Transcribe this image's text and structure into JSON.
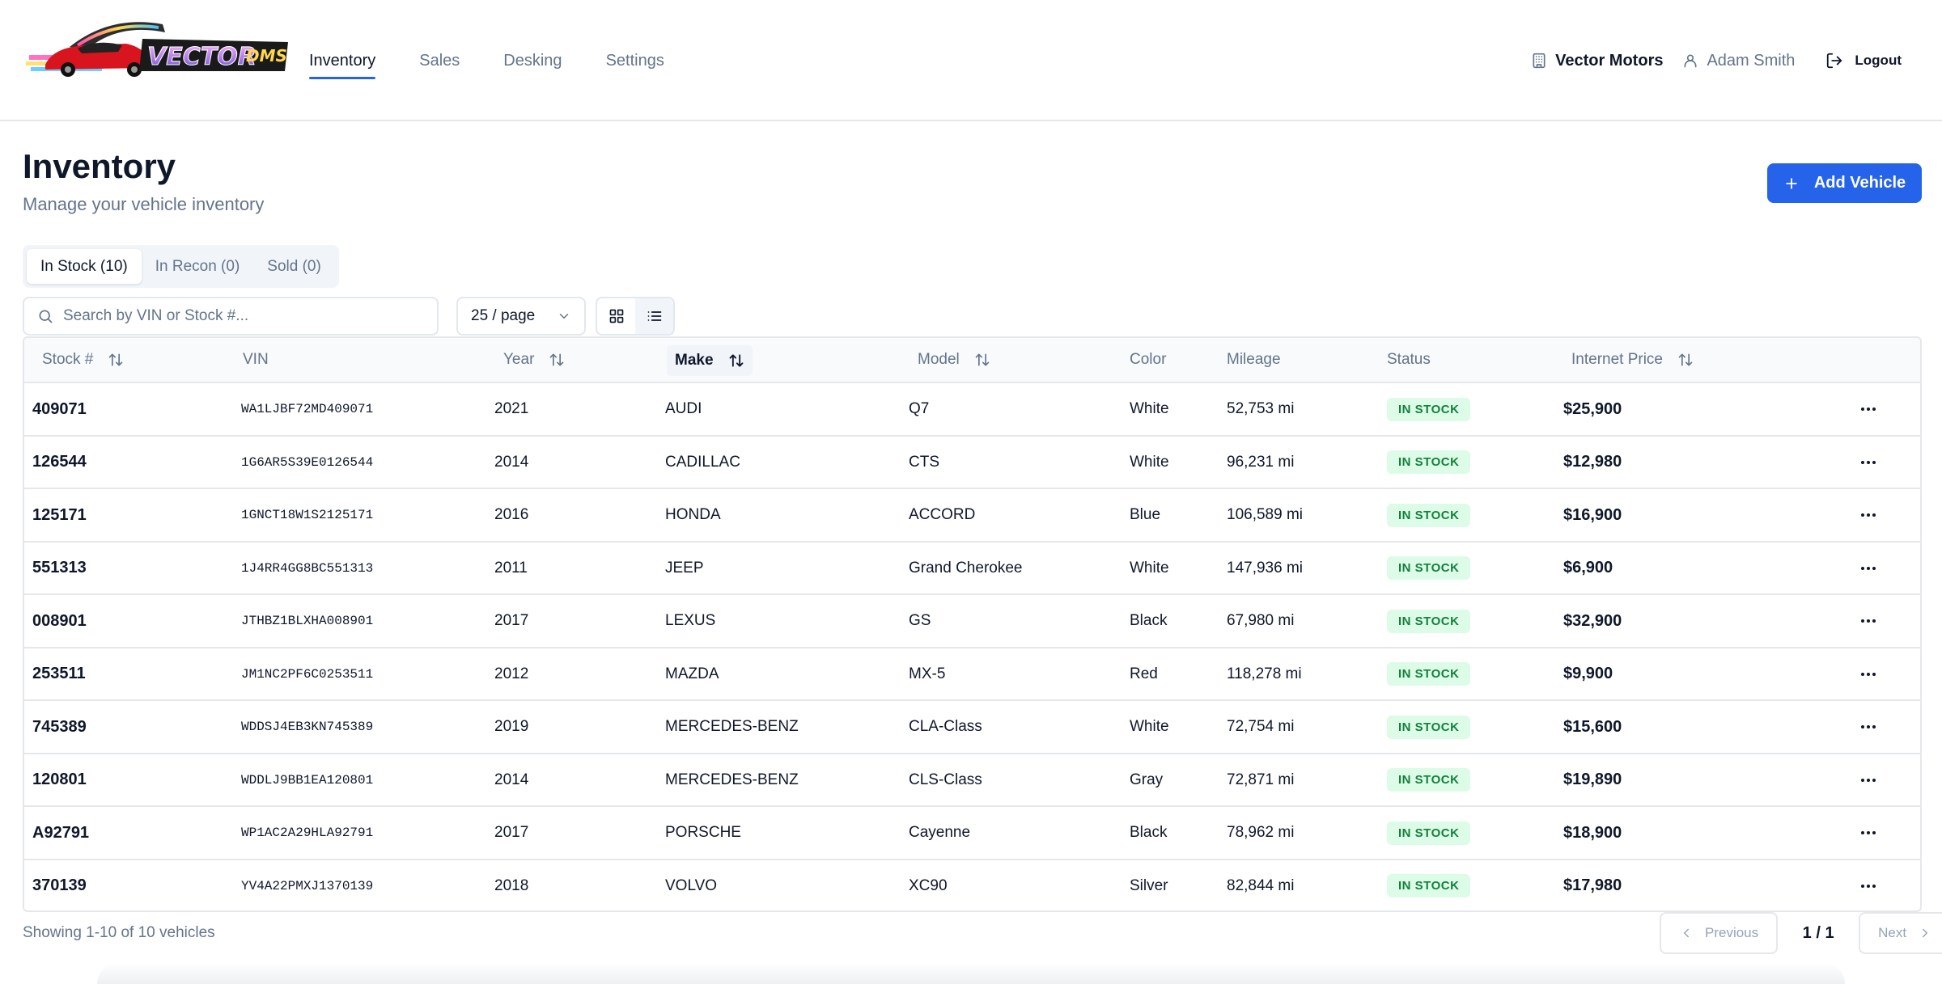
{
  "header": {
    "logo_text": "VECTOR DMS",
    "nav": [
      {
        "label": "Inventory",
        "active": true
      },
      {
        "label": "Sales",
        "active": false
      },
      {
        "label": "Desking",
        "active": false
      },
      {
        "label": "Settings",
        "active": false
      }
    ],
    "dealer_name": "Vector Motors",
    "user_name": "Adam Smith",
    "logout_label": "Logout"
  },
  "page": {
    "title": "Inventory",
    "subtitle": "Manage your vehicle inventory",
    "add_button": "Add Vehicle"
  },
  "tabs": [
    {
      "label": "In Stock (10)",
      "active": true
    },
    {
      "label": "In Recon (0)",
      "active": false
    },
    {
      "label": "Sold (0)",
      "active": false
    }
  ],
  "toolbar": {
    "search_placeholder": "Search by VIN or Stock #...",
    "page_size": "25 / page",
    "view_mode": "list"
  },
  "table": {
    "columns": [
      {
        "label": "Stock #",
        "sortable": true
      },
      {
        "label": "VIN",
        "sortable": false
      },
      {
        "label": "Year",
        "sortable": true
      },
      {
        "label": "Make",
        "sortable": true,
        "sorted": true
      },
      {
        "label": "Model",
        "sortable": true
      },
      {
        "label": "Color",
        "sortable": false
      },
      {
        "label": "Mileage",
        "sortable": false
      },
      {
        "label": "Status",
        "sortable": false
      },
      {
        "label": "Internet Price",
        "sortable": true
      }
    ],
    "rows": [
      {
        "stock": "409071",
        "vin": "WA1LJBF72MD409071",
        "year": "2021",
        "make": "AUDI",
        "model": "Q7",
        "color": "White",
        "mileage": "52,753 mi",
        "status": "IN STOCK",
        "price": "$25,900"
      },
      {
        "stock": "126544",
        "vin": "1G6AR5S39E0126544",
        "year": "2014",
        "make": "CADILLAC",
        "model": "CTS",
        "color": "White",
        "mileage": "96,231 mi",
        "status": "IN STOCK",
        "price": "$12,980"
      },
      {
        "stock": "125171",
        "vin": "1GNCT18W1S2125171",
        "year": "2016",
        "make": "HONDA",
        "model": "ACCORD",
        "color": "Blue",
        "mileage": "106,589 mi",
        "status": "IN STOCK",
        "price": "$16,900"
      },
      {
        "stock": "551313",
        "vin": "1J4RR4GG8BC551313",
        "year": "2011",
        "make": "JEEP",
        "model": "Grand Cherokee",
        "color": "White",
        "mileage": "147,936 mi",
        "status": "IN STOCK",
        "price": "$6,900"
      },
      {
        "stock": "008901",
        "vin": "JTHBZ1BLXHA008901",
        "year": "2017",
        "make": "LEXUS",
        "model": "GS",
        "color": "Black",
        "mileage": "67,980 mi",
        "status": "IN STOCK",
        "price": "$32,900"
      },
      {
        "stock": "253511",
        "vin": "JM1NC2PF6C0253511",
        "year": "2012",
        "make": "MAZDA",
        "model": "MX-5",
        "color": "Red",
        "mileage": "118,278 mi",
        "status": "IN STOCK",
        "price": "$9,900"
      },
      {
        "stock": "745389",
        "vin": "WDDSJ4EB3KN745389",
        "year": "2019",
        "make": "MERCEDES-BENZ",
        "model": "CLA-Class",
        "color": "White",
        "mileage": "72,754 mi",
        "status": "IN STOCK",
        "price": "$15,600"
      },
      {
        "stock": "120801",
        "vin": "WDDLJ9BB1EA120801",
        "year": "2014",
        "make": "MERCEDES-BENZ",
        "model": "CLS-Class",
        "color": "Gray",
        "mileage": "72,871 mi",
        "status": "IN STOCK",
        "price": "$19,890"
      },
      {
        "stock": "A92791",
        "vin": "WP1AC2A29HLA92791",
        "year": "2017",
        "make": "PORSCHE",
        "model": "Cayenne",
        "color": "Black",
        "mileage": "78,962 mi",
        "status": "IN STOCK",
        "price": "$18,900"
      },
      {
        "stock": "370139",
        "vin": "YV4A22PMXJ1370139",
        "year": "2018",
        "make": "VOLVO",
        "model": "XC90",
        "color": "Silver",
        "mileage": "82,844 mi",
        "status": "IN STOCK",
        "price": "$17,980"
      }
    ]
  },
  "footer": {
    "showing": "Showing 1-10 of 10 vehicles",
    "previous_label": "Previous",
    "page_count": "1 / 1",
    "next_label": "Next"
  },
  "colors": {
    "accent": "#2563eb",
    "status_bg": "#dcfce7",
    "status_text": "#15803d"
  }
}
